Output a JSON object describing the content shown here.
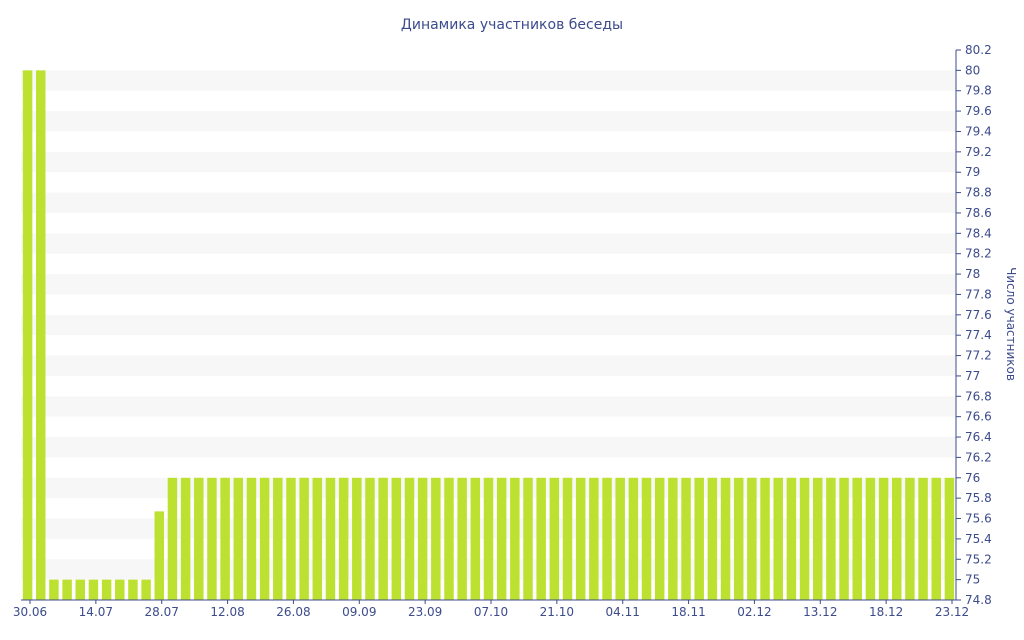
{
  "chart_data": {
    "type": "bar",
    "title": "Динамика участников беседы",
    "ylabel": "Число участников",
    "xlabel": "",
    "ylim": [
      74.8,
      80.2
    ],
    "y_axis_position": "right",
    "y_ticks": [
      "74.8",
      "75",
      "75.2",
      "75.4",
      "75.6",
      "75.8",
      "76",
      "76.2",
      "76.4",
      "76.6",
      "76.8",
      "77",
      "77.2",
      "77.4",
      "77.6",
      "77.8",
      "78",
      "78.2",
      "78.4",
      "78.6",
      "78.8",
      "79",
      "79.2",
      "79.4",
      "79.6",
      "79.8",
      "80",
      "80.2"
    ],
    "x_tick_labels": [
      "30.06",
      "14.07",
      "28.07",
      "12.08",
      "26.08",
      "09.09",
      "23.09",
      "07.10",
      "21.10",
      "04.11",
      "18.11",
      "02.12",
      "13.12",
      "18.12",
      "23.12"
    ],
    "bar_color": "#bde130",
    "grid": "alternating horizontal bands",
    "values": [
      80,
      80,
      75,
      75,
      75,
      75,
      75,
      75,
      75,
      75,
      75.67,
      76,
      76,
      76,
      76,
      76,
      76,
      76,
      76,
      76,
      76,
      76,
      76,
      76,
      76,
      76,
      76,
      76,
      76,
      76,
      76,
      76,
      76,
      76,
      76,
      76,
      76,
      76,
      76,
      76,
      76,
      76,
      76,
      76,
      76,
      76,
      76,
      76,
      76,
      76,
      76,
      76,
      76,
      76,
      76,
      76,
      76,
      76,
      76,
      76,
      76,
      76,
      76,
      76,
      76,
      76,
      76,
      76,
      76,
      76,
      76
    ]
  }
}
